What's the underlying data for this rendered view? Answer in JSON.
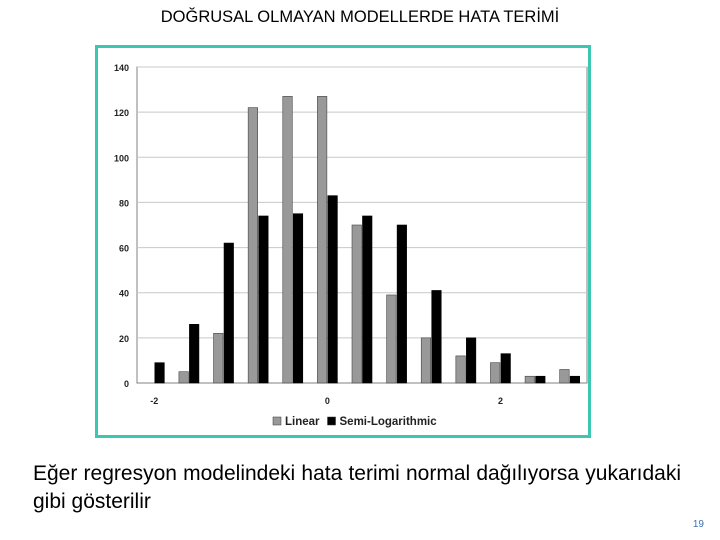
{
  "slide": {
    "title": "DOĞRUSAL OLMAYAN MODELLERDE HATA TERİMİ",
    "body_text": "Eğer regresyon modelindeki hata terimi normal dağılıyorsa yukarıdaki gibi gösterilir",
    "page_number": "19"
  },
  "colors": {
    "frame": "#3cc7b2",
    "linear": "#999999",
    "semi_log": "#000000"
  },
  "chart_data": {
    "type": "bar",
    "categories": [
      "",
      "",
      "",
      "",
      "",
      "",
      "",
      "",
      "",
      "",
      "",
      "",
      ""
    ],
    "x_tick_labels": [
      "-2",
      "0",
      "2"
    ],
    "series": [
      {
        "name": "Linear",
        "values": [
          0,
          5,
          22,
          122,
          127,
          127,
          70,
          39,
          20,
          12,
          9,
          3,
          6
        ]
      },
      {
        "name": "Semi-Logarithmic",
        "values": [
          9,
          26,
          62,
          74,
          75,
          83,
          74,
          70,
          41,
          20,
          13,
          3,
          3
        ]
      }
    ],
    "ylim": [
      0,
      140
    ],
    "yticks": [
      0,
      20,
      40,
      60,
      80,
      100,
      120,
      140
    ],
    "grid": "horizontal",
    "legend": "bottom"
  }
}
